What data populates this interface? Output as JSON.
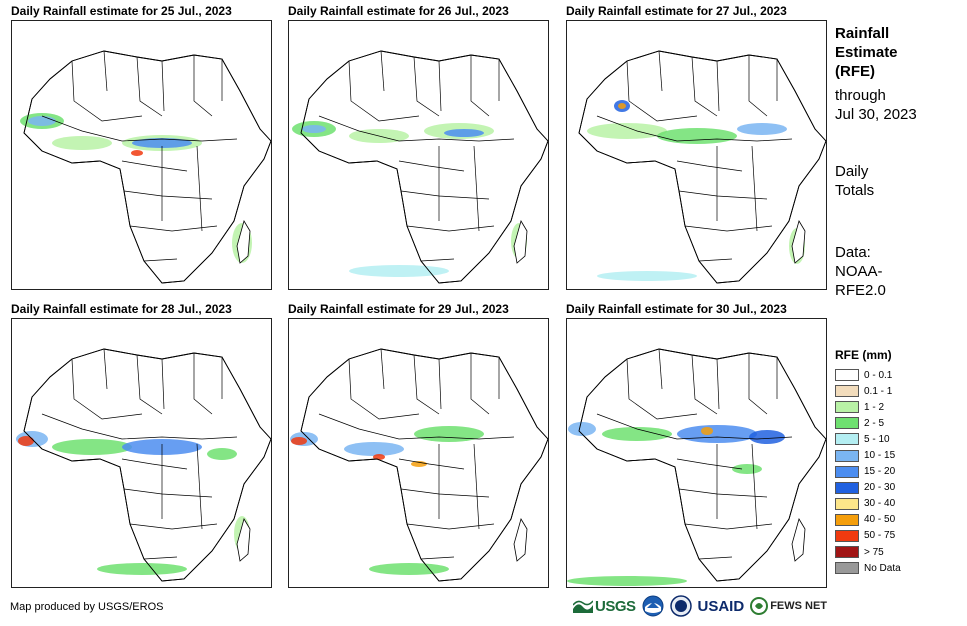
{
  "panels": [
    {
      "title": "Daily Rainfall estimate for 25 Jul., 2023"
    },
    {
      "title": "Daily Rainfall estimate for 26 Jul., 2023"
    },
    {
      "title": "Daily Rainfall estimate for 27 Jul., 2023"
    },
    {
      "title": "Daily Rainfall estimate for 28 Jul., 2023"
    },
    {
      "title": "Daily Rainfall estimate for 29 Jul., 2023"
    },
    {
      "title": "Daily Rainfall estimate for 30 Jul., 2023"
    }
  ],
  "sidebar": {
    "title_line1": "Rainfall",
    "title_line2": "Estimate",
    "title_line3": "(RFE)",
    "through_label": "through",
    "through_date": "Jul 30, 2023",
    "totals_line1": "Daily",
    "totals_line2": "Totals",
    "data_line1": "Data:",
    "data_line2": "NOAA-",
    "data_line3": "RFE2.0"
  },
  "legend": {
    "title": "RFE (mm)",
    "items": [
      {
        "label": "0 - 0.1",
        "color": "#ffffff"
      },
      {
        "label": "0.1 - 1",
        "color": "#f2dcbc"
      },
      {
        "label": "1 - 2",
        "color": "#b9f2a6"
      },
      {
        "label": "2 - 5",
        "color": "#6fe070"
      },
      {
        "label": "5 - 10",
        "color": "#b4eef2"
      },
      {
        "label": "10 - 15",
        "color": "#7ab5f2"
      },
      {
        "label": "15 - 20",
        "color": "#4c8df0"
      },
      {
        "label": "20 - 30",
        "color": "#2161e0"
      },
      {
        "label": "30 - 40",
        "color": "#fde68a"
      },
      {
        "label": "40 - 50",
        "color": "#f59e0b"
      },
      {
        "label": "50 - 75",
        "color": "#f03a0f"
      },
      {
        "label": "> 75",
        "color": "#a11515"
      },
      {
        "label": "No Data",
        "color": "#999999"
      }
    ]
  },
  "footer": {
    "credit": "Map produced by USGS/EROS",
    "logos": {
      "usgs": "USGS",
      "usaid": "USAID",
      "fews": "FEWS NET"
    }
  }
}
